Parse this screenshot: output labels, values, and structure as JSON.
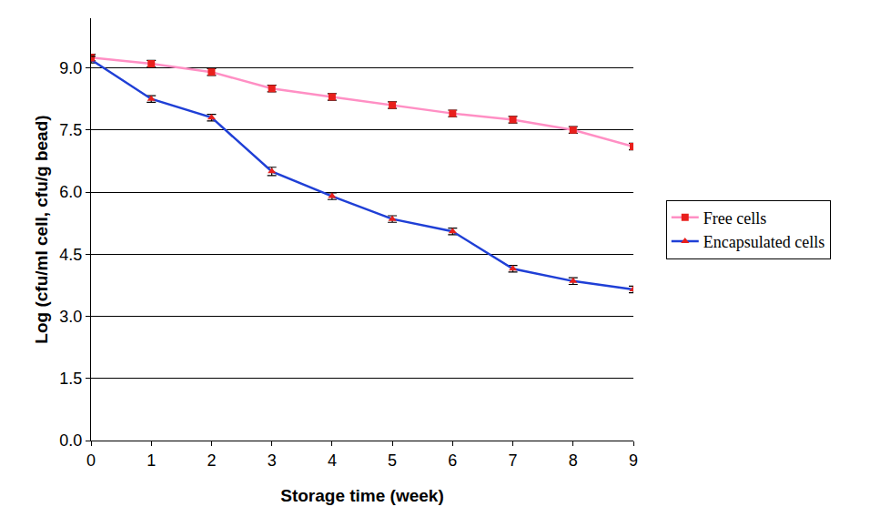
{
  "chart_data": {
    "type": "line",
    "x_label": "Storage time (week)",
    "y_label": "Log (cfu/ml cell, cfu/g bead)",
    "x": [
      0,
      1,
      2,
      3,
      4,
      5,
      6,
      7,
      8,
      9
    ],
    "series": [
      {
        "name": "Free cells",
        "color": "#ff8fc4",
        "marker": "square",
        "values": [
          9.25,
          9.1,
          8.9,
          8.5,
          8.3,
          8.1,
          7.9,
          7.75,
          7.5,
          7.1
        ],
        "error": [
          0.08,
          0.08,
          0.08,
          0.08,
          0.08,
          0.08,
          0.08,
          0.08,
          0.08,
          0.08
        ]
      },
      {
        "name": "Encapsulated cells",
        "color": "#1f3fd6",
        "marker": "triangle-up",
        "values": [
          9.2,
          8.25,
          7.8,
          6.5,
          5.9,
          5.35,
          5.05,
          4.15,
          3.85,
          3.65
        ],
        "error": [
          0.08,
          0.08,
          0.08,
          0.1,
          0.08,
          0.08,
          0.08,
          0.08,
          0.08,
          0.08
        ]
      }
    ],
    "xlim": [
      0,
      9
    ],
    "xticks": [
      0,
      1,
      2,
      3,
      4,
      5,
      6,
      7,
      8,
      9
    ],
    "ylim": [
      0,
      10.2
    ],
    "yticks": [
      {
        "value": 0,
        "label": "0.0"
      },
      1.5,
      {
        "value": 3,
        "label": "3.0"
      },
      4.5,
      {
        "value": 6,
        "label": "6.0"
      },
      7.5,
      {
        "value": 9,
        "label": "9.0"
      }
    ],
    "grid": true,
    "legend": "right"
  }
}
